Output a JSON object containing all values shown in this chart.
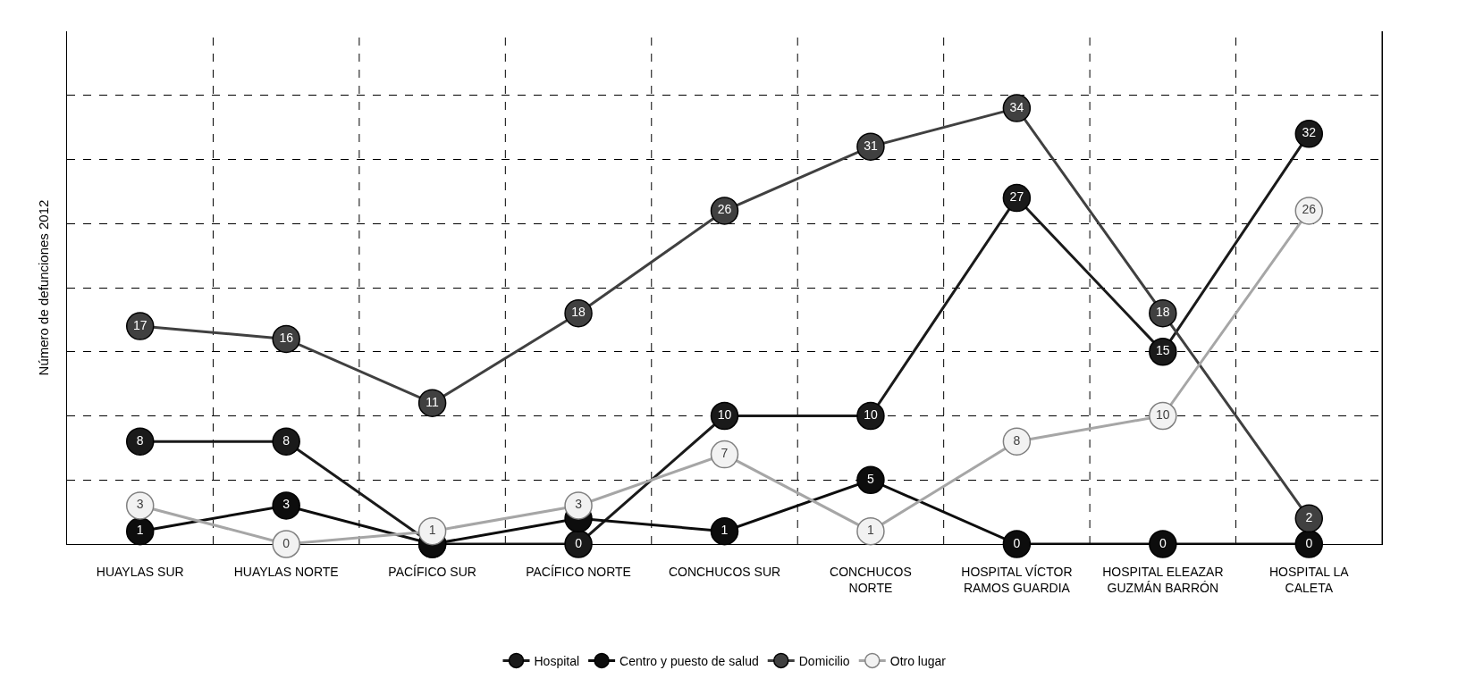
{
  "chart_data": {
    "type": "line",
    "ylabel": "Número de defunciones 2012",
    "categories": [
      "HUAYLAS SUR",
      "HUAYLAS NORTE",
      "PACÍFICO SUR",
      "PACÍFICO NORTE",
      "CONCHUCOS SUR",
      "CONCHUCOS\nNORTE",
      "HOSPITAL VÍCTOR\nRAMOS GUARDIA",
      "HOSPITAL ELEAZAR\nGUZMÁN BARRÓN",
      "HOSPITAL LA\nCALETA"
    ],
    "series": [
      {
        "name": "Hospital",
        "color": "#1a1a1a",
        "values": [
          8,
          8,
          0,
          0,
          10,
          10,
          27,
          15,
          32
        ],
        "value_labels": [
          "8",
          "8",
          null,
          "0",
          "10",
          "10",
          "27",
          "15",
          "32"
        ]
      },
      {
        "name": "Centro y puesto de salud",
        "color": "#0d0d0d",
        "values": [
          1,
          3,
          0,
          2,
          1,
          5,
          0,
          0,
          0
        ],
        "value_labels": [
          "1",
          "3",
          null,
          null,
          "1",
          "5",
          "0",
          "0",
          "0"
        ]
      },
      {
        "name": "Domicilio",
        "color": "#404040",
        "values": [
          17,
          16,
          11,
          18,
          26,
          31,
          34,
          18,
          2
        ]
      },
      {
        "name": "Otro lugar",
        "color": "#f2f2f2",
        "values": [
          3,
          0,
          1,
          3,
          7,
          1,
          8,
          10,
          26
        ]
      }
    ],
    "ylim": [
      0,
      40
    ],
    "yticks": [
      {
        "value": 0,
        "label": null
      },
      {
        "value": 5,
        "label": null
      },
      {
        "value": 10,
        "label": null
      },
      {
        "value": 15,
        "label": null
      },
      {
        "value": 20,
        "label": null
      },
      {
        "value": 25,
        "label": null
      },
      {
        "value": 30,
        "label": null
      },
      {
        "value": 35,
        "label": null
      }
    ],
    "tick_labels": "x",
    "grid": true,
    "legend": "bottom",
    "marker": "circle",
    "data_labels": true
  }
}
